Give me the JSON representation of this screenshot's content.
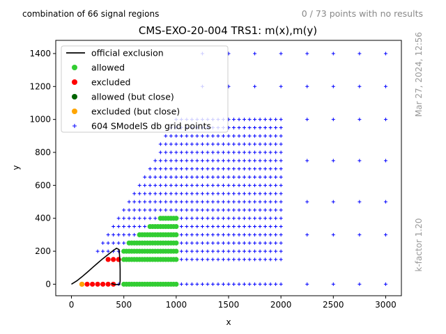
{
  "header": {
    "left_note": "combination of 66 signal regions",
    "right_note": "0 / 73 points with no results"
  },
  "side_notes": {
    "timestamp": "Mar 27, 2024, 12:56",
    "kfactor": "k-factor 1.20"
  },
  "chart_data": {
    "type": "scatter",
    "title": "CMS-EXO-20-004 TRS1: m(x),m(y)",
    "xlabel": "x",
    "ylabel": "y",
    "xlim": [
      -150,
      3150
    ],
    "ylim": [
      -70,
      1480
    ],
    "x_ticks": [
      0,
      500,
      1000,
      1500,
      2000,
      2500,
      3000
    ],
    "y_ticks": [
      0,
      200,
      400,
      600,
      800,
      1000,
      1200,
      1400
    ],
    "grid": false,
    "legend_position": "top-left",
    "legend": [
      {
        "label": "official exclusion",
        "marker": "line",
        "color": "#000000"
      },
      {
        "label": "allowed",
        "marker": "dot",
        "color": "#32cd32"
      },
      {
        "label": "excluded",
        "marker": "dot",
        "color": "#ff0000"
      },
      {
        "label": "allowed (but close)",
        "marker": "dot",
        "color": "#006400"
      },
      {
        "label": "excluded (but close)",
        "marker": "dot",
        "color": "#ffa500"
      },
      {
        "label": "604 SModelS db grid points",
        "marker": "plus",
        "color": "#0000ff"
      }
    ],
    "exclusion_curve": {
      "name": "official exclusion",
      "color": "#000000",
      "x": [
        0,
        50,
        100,
        150,
        200,
        250,
        300,
        350,
        400,
        430,
        455,
        462,
        465,
        465,
        460,
        440,
        420,
        400,
        380
      ],
      "y": [
        0,
        20,
        45,
        72,
        100,
        128,
        155,
        180,
        205,
        218,
        210,
        150,
        90,
        20,
        -2,
        -2,
        -2,
        0,
        5
      ]
    },
    "point_rules": {
      "grid_rows": [
        {
          "y": 1000,
          "x_from": 1000,
          "x_to": 2000,
          "step": 50
        },
        {
          "y": 950,
          "x_from": 950,
          "x_to": 2000,
          "step": 50
        },
        {
          "y": 900,
          "x_from": 900,
          "x_to": 2000,
          "step": 50
        },
        {
          "y": 850,
          "x_from": 850,
          "x_to": 2000,
          "step": 50
        },
        {
          "y": 800,
          "x_from": 850,
          "x_to": 2000,
          "step": 50
        },
        {
          "y": 750,
          "x_from": 800,
          "x_to": 2000,
          "step": 50
        },
        {
          "y": 700,
          "x_from": 750,
          "x_to": 2000,
          "step": 50
        },
        {
          "y": 650,
          "x_from": 700,
          "x_to": 2000,
          "step": 50
        },
        {
          "y": 600,
          "x_from": 650,
          "x_to": 2000,
          "step": 50
        },
        {
          "y": 550,
          "x_from": 600,
          "x_to": 2000,
          "step": 50
        },
        {
          "y": 500,
          "x_from": 550,
          "x_to": 2000,
          "step": 50
        },
        {
          "y": 450,
          "x_from": 500,
          "x_to": 2000,
          "step": 50
        },
        {
          "y": 400,
          "x_from": 450,
          "x_to": 2000,
          "step": 50
        },
        {
          "y": 350,
          "x_from": 400,
          "x_to": 2000,
          "step": 50
        },
        {
          "y": 300,
          "x_from": 350,
          "x_to": 2000,
          "step": 50
        },
        {
          "y": 250,
          "x_from": 300,
          "x_to": 2000,
          "step": 50
        },
        {
          "y": 200,
          "x_from": 250,
          "x_to": 2000,
          "step": 50
        },
        {
          "y": 150,
          "x_from": 400,
          "x_to": 2000,
          "step": 50
        },
        {
          "y": 0,
          "x_from": 100,
          "x_to": 2000,
          "step": 50
        }
      ],
      "sparse_x": [
        2250,
        2500,
        2750,
        3000
      ],
      "sparse_y": [
        0,
        300,
        500,
        750,
        1000,
        1200,
        1400
      ],
      "extra_top_row_x": [
        1250,
        1500,
        1750,
        2000
      ],
      "extra_top_row_y": [
        1200,
        1400
      ],
      "allowed_x_range": [
        550,
        1000
      ],
      "allowed_rows": [
        {
          "y": 400,
          "x_from": 850,
          "x_to": 1000
        },
        {
          "y": 350,
          "x_from": 750,
          "x_to": 1000
        },
        {
          "y": 300,
          "x_from": 650,
          "x_to": 1000
        },
        {
          "y": 250,
          "x_from": 550,
          "x_to": 1000
        },
        {
          "y": 200,
          "x_from": 500,
          "x_to": 1000
        },
        {
          "y": 150,
          "x_from": 500,
          "x_to": 1000
        },
        {
          "y": 0,
          "x_from": 500,
          "x_to": 1000
        }
      ],
      "excluded_points": [
        [
          100,
          0
        ],
        [
          150,
          0
        ],
        [
          200,
          0
        ],
        [
          250,
          0
        ],
        [
          300,
          0
        ],
        [
          350,
          0
        ],
        [
          400,
          0
        ],
        [
          350,
          150
        ],
        [
          400,
          150
        ],
        [
          450,
          150
        ]
      ],
      "excluded_close_points": [
        [
          100,
          0
        ]
      ]
    }
  }
}
